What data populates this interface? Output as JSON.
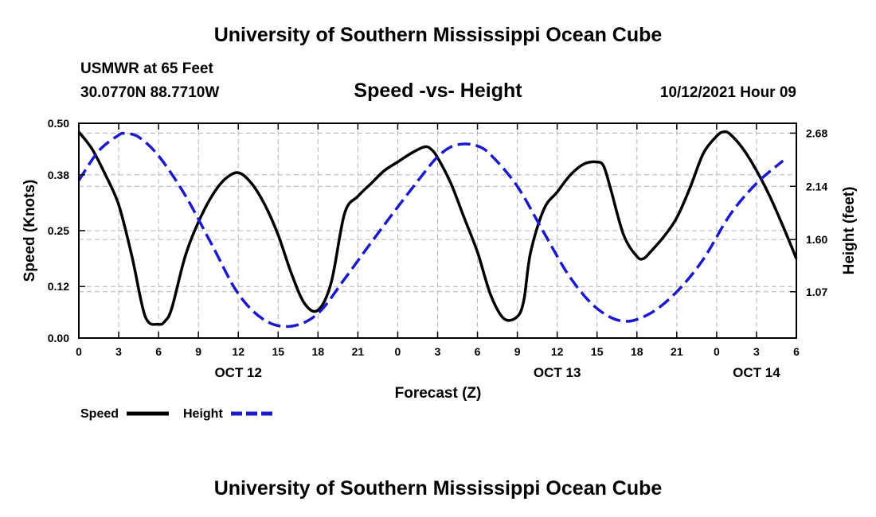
{
  "header": {
    "title": "University of Southern Mississippi Ocean Cube",
    "station": "USMWR at 65 Feet",
    "coords": "30.0770N  88.7710W",
    "subtitle": "Speed -vs- Height",
    "datetime": "10/12/2021 Hour 09"
  },
  "footer": {
    "title": "University of Southern Mississippi Ocean Cube"
  },
  "legend": {
    "speed_label": "Speed",
    "height_label": "Height"
  },
  "colors": {
    "speed": "#000000",
    "height": "#1a1acc",
    "grid": "#b4b4b4"
  },
  "chart_data": {
    "type": "line",
    "title": "Speed -vs- Height",
    "xlabel": "Forecast (Z)",
    "ylabel": "Speed (Knots)",
    "y2label": "Height (feet)",
    "xlim": [
      0,
      54
    ],
    "ylim": [
      0,
      0.5
    ],
    "y2lim": [
      0.6,
      2.78
    ],
    "x_ticks": [
      0,
      3,
      6,
      9,
      12,
      15,
      18,
      21,
      24,
      27,
      30,
      33,
      36,
      39,
      42,
      45,
      48,
      51,
      54
    ],
    "x_tick_labels": [
      "0",
      "3",
      "6",
      "9",
      "12",
      "15",
      "18",
      "21",
      "0",
      "3",
      "6",
      "9",
      "12",
      "15",
      "18",
      "21",
      "0",
      "3",
      "6"
    ],
    "date_labels": [
      {
        "x": 12,
        "label": "OCT 12"
      },
      {
        "x": 36,
        "label": "OCT 13"
      },
      {
        "x": 51,
        "label": "OCT 14"
      }
    ],
    "y_ticks": [
      0.0,
      0.12,
      0.25,
      0.38,
      0.5
    ],
    "y_tick_labels": [
      "0.00",
      "0.12",
      "0.25",
      "0.38",
      "0.50"
    ],
    "y2_ticks": [
      1.07,
      1.6,
      2.14,
      2.68
    ],
    "y2_tick_labels": [
      "1.07",
      "1.60",
      "2.14",
      "2.68"
    ],
    "grid": true,
    "series": [
      {
        "name": "Speed",
        "axis": "left",
        "style": "solid",
        "x": [
          0,
          1,
          2,
          3,
          4,
          5,
          6,
          6.5,
          7,
          8,
          9,
          10,
          11,
          12,
          13,
          14,
          15,
          16,
          17,
          18,
          19,
          20,
          21,
          22,
          23,
          24,
          25,
          26,
          26.5,
          27,
          28,
          29,
          30,
          31,
          32,
          33,
          33.5,
          34,
          35,
          36,
          37,
          38,
          39,
          39.5,
          40,
          41,
          42,
          42.5,
          43,
          44,
          45,
          46,
          47,
          48,
          48.5,
          49,
          50,
          51,
          52,
          53,
          54
        ],
        "values": [
          0.48,
          0.44,
          0.38,
          0.31,
          0.19,
          0.05,
          0.032,
          0.04,
          0.07,
          0.19,
          0.27,
          0.33,
          0.37,
          0.385,
          0.36,
          0.31,
          0.24,
          0.15,
          0.08,
          0.065,
          0.13,
          0.29,
          0.33,
          0.36,
          0.39,
          0.41,
          0.43,
          0.445,
          0.44,
          0.42,
          0.36,
          0.28,
          0.2,
          0.1,
          0.045,
          0.05,
          0.09,
          0.2,
          0.3,
          0.34,
          0.38,
          0.405,
          0.41,
          0.4,
          0.35,
          0.24,
          0.19,
          0.185,
          0.2,
          0.235,
          0.28,
          0.35,
          0.43,
          0.47,
          0.48,
          0.475,
          0.44,
          0.39,
          0.33,
          0.26,
          0.185
        ]
      },
      {
        "name": "Height",
        "axis": "right",
        "style": "dashed",
        "x": [
          0,
          1.5,
          3,
          3.5,
          4.5,
          6,
          8,
          10,
          12,
          14,
          16,
          18,
          20,
          22,
          24,
          26,
          27,
          28,
          29,
          30,
          31,
          33,
          35,
          37,
          39,
          41,
          43,
          45,
          47,
          49,
          51,
          53
        ],
        "values": [
          2.2,
          2.5,
          2.66,
          2.675,
          2.64,
          2.45,
          2.05,
          1.55,
          1.05,
          0.78,
          0.72,
          0.85,
          1.2,
          1.57,
          1.93,
          2.28,
          2.44,
          2.54,
          2.57,
          2.55,
          2.46,
          2.14,
          1.67,
          1.21,
          0.9,
          0.77,
          0.85,
          1.07,
          1.4,
          1.85,
          2.17,
          2.4
        ]
      }
    ]
  }
}
